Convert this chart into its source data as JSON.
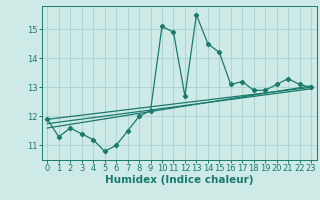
{
  "xlabel": "Humidex (Indice chaleur)",
  "ylabel": "",
  "bg_color": "#ceeae6",
  "grid_color": "#afd4cf",
  "line_color": "#1a7a6e",
  "x_values": [
    0,
    1,
    2,
    3,
    4,
    5,
    6,
    7,
    8,
    9,
    10,
    11,
    12,
    13,
    14,
    15,
    16,
    17,
    18,
    19,
    20,
    21,
    22,
    23
  ],
  "main_y": [
    11.9,
    11.3,
    11.6,
    11.4,
    11.2,
    10.8,
    11.0,
    11.5,
    12.0,
    12.2,
    15.1,
    14.9,
    12.7,
    15.5,
    14.5,
    14.2,
    13.1,
    13.2,
    12.9,
    12.9,
    13.1,
    13.3,
    13.1,
    13.0
  ],
  "reg_lines": [
    {
      "x0": 0,
      "y0": 11.9,
      "x1": 23,
      "y1": 13.0
    },
    {
      "x0": 0,
      "y0": 11.75,
      "x1": 23,
      "y1": 12.95
    },
    {
      "x0": 0,
      "y0": 11.6,
      "x1": 23,
      "y1": 13.05
    }
  ],
  "ylim": [
    10.5,
    15.8
  ],
  "xlim": [
    -0.5,
    23.5
  ],
  "yticks": [
    11,
    12,
    13,
    14,
    15
  ],
  "xticks": [
    0,
    1,
    2,
    3,
    4,
    5,
    6,
    7,
    8,
    9,
    10,
    11,
    12,
    13,
    14,
    15,
    16,
    17,
    18,
    19,
    20,
    21,
    22,
    23
  ],
  "tick_fontsize": 6,
  "xlabel_fontsize": 7.5
}
